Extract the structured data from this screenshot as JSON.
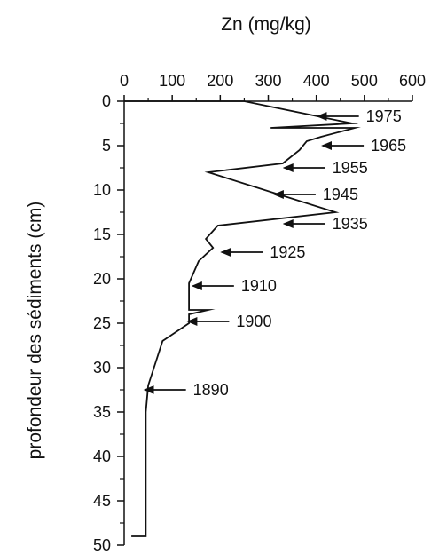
{
  "chart_data": {
    "type": "line",
    "title": "Zn (mg/kg)",
    "xlabel": "",
    "ylabel": "profondeur des sédiments (cm)",
    "x_axis_position": "top",
    "y_axis_inverted": true,
    "xlim": [
      0,
      600
    ],
    "ylim": [
      0,
      50
    ],
    "xticks": [
      0,
      100,
      200,
      300,
      400,
      500,
      600
    ],
    "yticks": [
      0,
      5,
      10,
      15,
      20,
      25,
      30,
      35,
      40,
      45,
      50
    ],
    "grid": false,
    "series": [
      {
        "x": [
          0,
          250,
          475,
          305,
          480,
          410,
          380,
          365,
          330,
          175,
          440,
          195,
          170,
          185,
          155,
          135,
          135,
          175,
          135,
          135,
          80,
          65,
          50,
          45,
          45,
          15
        ],
        "y": [
          0,
          0,
          2.5,
          3.0,
          3.0,
          4.0,
          4.5,
          5.5,
          7.0,
          8.0,
          12.5,
          14.0,
          15.5,
          16.5,
          18.0,
          20.5,
          23.5,
          23.5,
          24.0,
          25.0,
          27.0,
          29.5,
          32.0,
          35.0,
          49.0,
          49.0
        ]
      }
    ],
    "annotations": [
      {
        "text": "1975",
        "x": 400,
        "y": 1.7
      },
      {
        "text": "1965",
        "x": 410,
        "y": 5.0
      },
      {
        "text": "1955",
        "x": 330,
        "y": 7.5
      },
      {
        "text": "1945",
        "x": 310,
        "y": 10.5
      },
      {
        "text": "1935",
        "x": 330,
        "y": 13.8
      },
      {
        "text": "1925",
        "x": 200,
        "y": 17.0
      },
      {
        "text": "1910",
        "x": 140,
        "y": 20.8
      },
      {
        "text": "1900",
        "x": 130,
        "y": 24.8
      },
      {
        "text": "1890",
        "x": 40,
        "y": 32.5
      }
    ]
  }
}
